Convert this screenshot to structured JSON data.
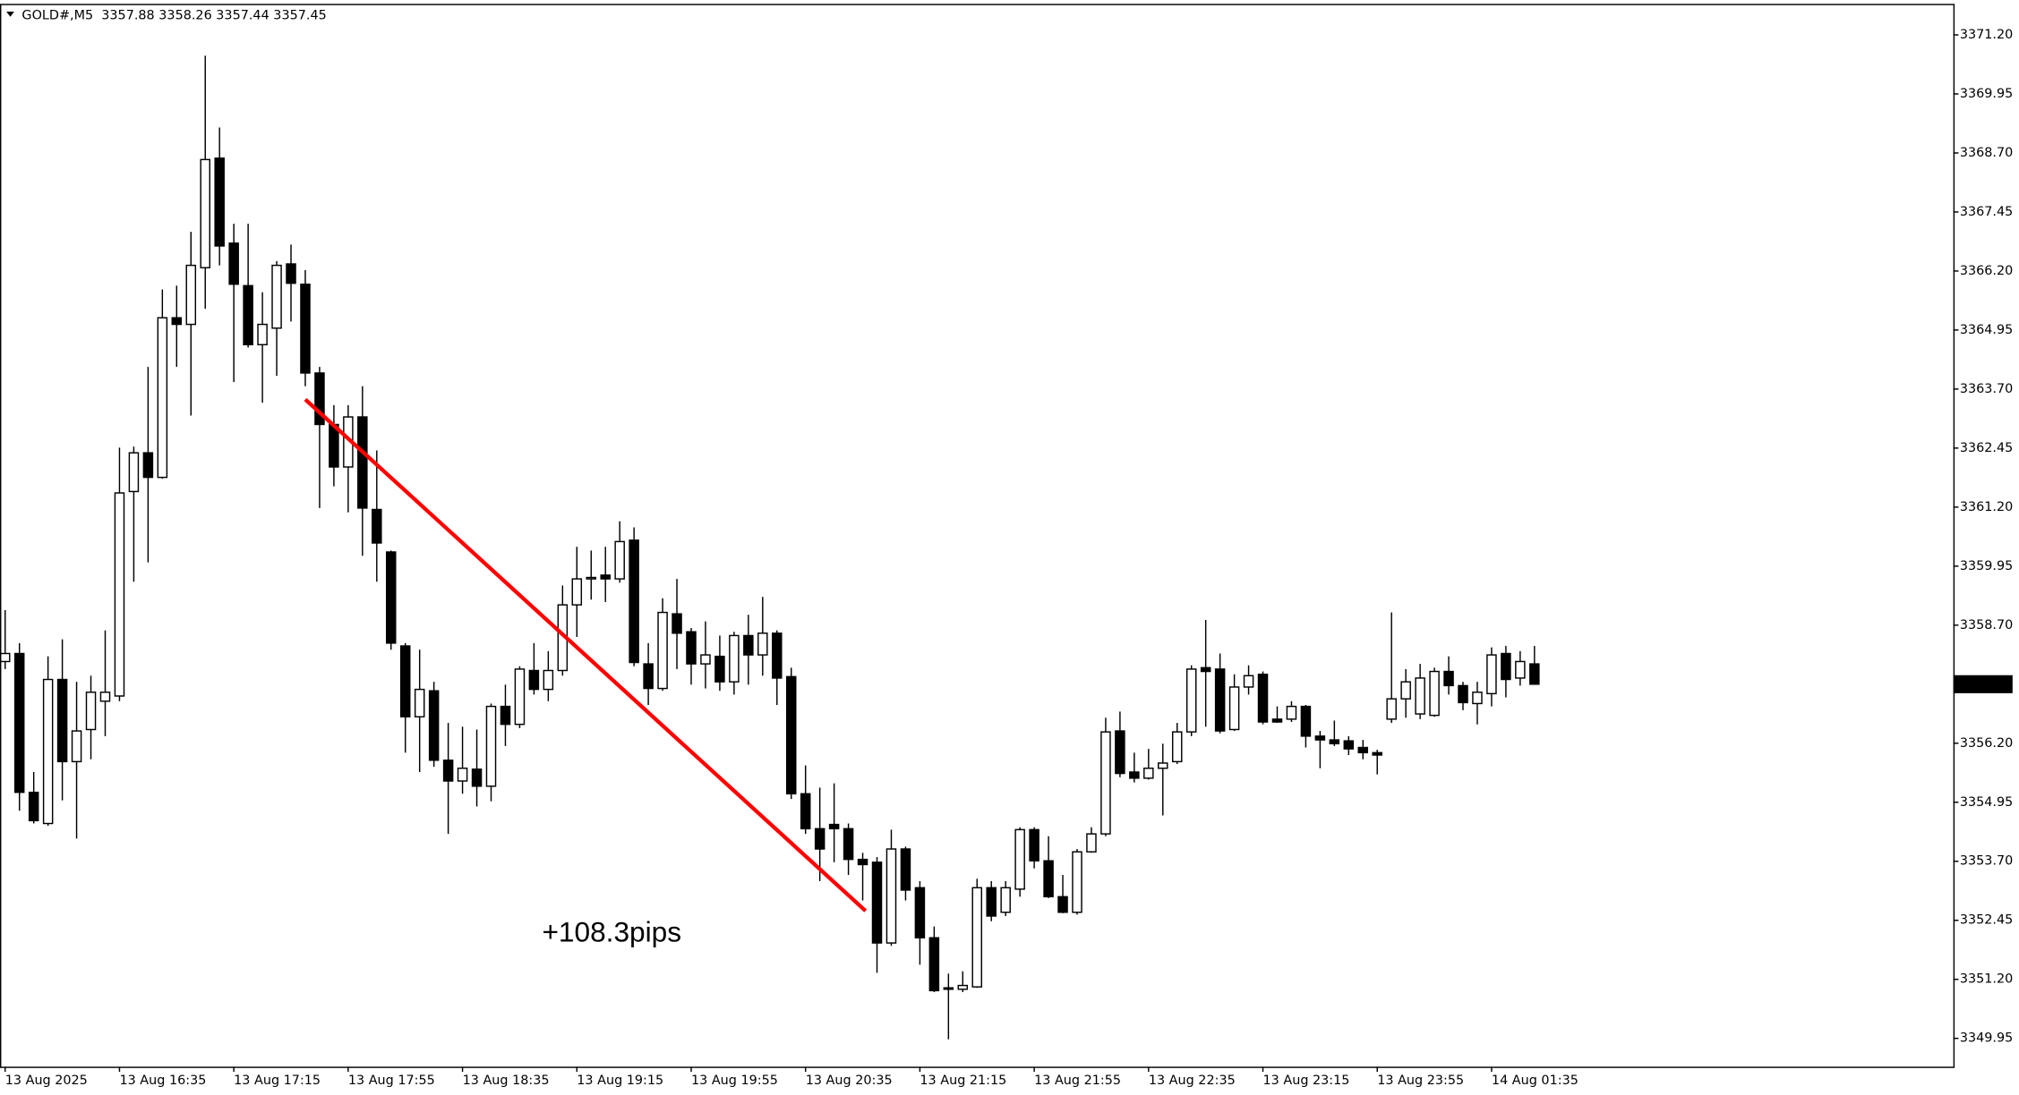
{
  "chart_data": {
    "type": "candlestick",
    "title": "GOLD#,M5  3357.88 3358.26 3357.44 3357.45",
    "categories": [
      "13 Aug 2025",
      null,
      null,
      null,
      null,
      null,
      null,
      null,
      "13 Aug 16:35",
      null,
      null,
      null,
      null,
      null,
      null,
      null,
      "13 Aug 17:15",
      null,
      null,
      null,
      null,
      null,
      null,
      null,
      "13 Aug 17:55",
      null,
      null,
      null,
      null,
      null,
      null,
      null,
      "13 Aug 18:35",
      null,
      null,
      null,
      null,
      null,
      null,
      null,
      "13 Aug 19:15",
      null,
      null,
      null,
      null,
      null,
      null,
      null,
      "13 Aug 19:55",
      null,
      null,
      null,
      null,
      null,
      null,
      null,
      "13 Aug 20:35",
      null,
      null,
      null,
      null,
      null,
      null,
      null,
      "13 Aug 21:15",
      null,
      null,
      null,
      null,
      null,
      null,
      null,
      "13 Aug 21:55",
      null,
      null,
      null,
      null,
      null,
      null,
      null,
      "13 Aug 22:35",
      null,
      null,
      null,
      null,
      null,
      null,
      null,
      "13 Aug 23:15",
      null,
      null,
      null,
      null,
      null,
      null,
      null,
      "13 Aug 23:55",
      null,
      null,
      null,
      null,
      null,
      null,
      null,
      "14 Aug 01:35",
      null,
      null,
      null
    ],
    "open": [
      3357.93,
      3358.1,
      3355.16,
      3354.5,
      3357.55,
      3355.81,
      3356.49,
      3357.09,
      3357.2,
      3361.53,
      3362.35,
      3361.83,
      3365.21,
      3365.07,
      3366.27,
      3368.59,
      3366.79,
      3365.89,
      3364.64,
      3364.99,
      3366.35,
      3365.92,
      3364.04,
      3362.95,
      3362.05,
      3363.11,
      3361.15,
      3360.25,
      3358.26,
      3356.76,
      3357.31,
      3355.84,
      3355.4,
      3355.65,
      3355.29,
      3356.98,
      3356.6,
      3357.74,
      3357.34,
      3357.74,
      3359.13,
      3359.68,
      3359.76,
      3359.68,
      3360.5,
      3357.88,
      3357.36,
      3358.94,
      3358.56,
      3357.88,
      3358.04,
      3357.5,
      3358.48,
      3358.07,
      3358.53,
      3357.61,
      3355.13,
      3354.39,
      3354.48,
      3354.39,
      3353.74,
      3353.68,
      3351.97,
      3353.96,
      3353.14,
      3352.08,
      3351.02,
      3350.99,
      3351.04,
      3353.14,
      3352.62,
      3353.11,
      3354.37,
      3353.71,
      3352.95,
      3352.62,
      3353.9,
      3354.28,
      3356.46,
      3355.59,
      3355.46,
      3355.67,
      3355.81,
      3356.44,
      3357.8,
      3357.77,
      3356.49,
      3357.39,
      3357.66,
      3356.71,
      3356.71,
      3356.98,
      3356.35,
      3356.27,
      3356.25,
      3356.11,
      3356.0,
      3356.71,
      3357.14,
      3356.82,
      3356.79,
      3357.72,
      3357.42,
      3357.04,
      3357.25,
      3358.1,
      3357.58,
      3357.88
    ],
    "high": [
      3359.02,
      3358.32,
      3355.59,
      3358.04,
      3358.4,
      3357.5,
      3357.63,
      3358.59,
      3362.46,
      3362.48,
      3364.17,
      3365.81,
      3365.89,
      3367.03,
      3370.76,
      3369.24,
      3367.2,
      3367.2,
      3365.75,
      3366.41,
      3366.76,
      3366.22,
      3364.17,
      3363.36,
      3363.36,
      3363.76,
      3362.4,
      3360.28,
      3358.32,
      3358.18,
      3357.5,
      3356.63,
      3356.55,
      3356.49,
      3357.04,
      3357.44,
      3357.83,
      3358.32,
      3358.15,
      3359.54,
      3360.36,
      3360.28,
      3360.36,
      3360.9,
      3360.77,
      3358.32,
      3359.27,
      3359.68,
      3358.64,
      3358.78,
      3358.48,
      3358.56,
      3358.92,
      3359.3,
      3358.59,
      3357.8,
      3355.73,
      3355.26,
      3355.35,
      3354.5,
      3353.88,
      3353.79,
      3354.37,
      3354.01,
      3353.28,
      3352.32,
      3351.32,
      3351.37,
      3353.33,
      3353.28,
      3353.28,
      3354.42,
      3354.42,
      3354.23,
      3353.41,
      3353.96,
      3354.42,
      3356.74,
      3356.87,
      3356.0,
      3356.08,
      3356.19,
      3356.63,
      3357.85,
      3358.81,
      3358.1,
      3357.66,
      3357.85,
      3357.72,
      3356.98,
      3357.09,
      3357.01,
      3356.46,
      3356.68,
      3356.35,
      3356.27,
      3356.06,
      3358.97,
      3357.77,
      3357.88,
      3357.8,
      3358.04,
      3357.5,
      3357.5,
      3358.23,
      3358.26,
      3358.15,
      3358.26
    ],
    "low": [
      3357.77,
      3354.77,
      3354.5,
      3354.45,
      3354.99,
      3354.18,
      3355.86,
      3356.35,
      3357.09,
      3359.62,
      3360.03,
      3361.8,
      3364.17,
      3363.14,
      3365.4,
      3366.32,
      3363.85,
      3364.58,
      3363.41,
      3363.98,
      3365.13,
      3363.76,
      3361.18,
      3361.64,
      3361.09,
      3360.17,
      3359.62,
      3358.18,
      3356.0,
      3355.59,
      3355.7,
      3354.28,
      3355.13,
      3354.86,
      3354.97,
      3356.14,
      3356.52,
      3357.23,
      3357.09,
      3357.63,
      3358.45,
      3359.24,
      3359.19,
      3359.6,
      3357.83,
      3357.01,
      3357.31,
      3357.77,
      3357.44,
      3357.36,
      3357.31,
      3357.23,
      3357.44,
      3357.63,
      3357.01,
      3355.02,
      3354.28,
      3353.28,
      3353.68,
      3353.41,
      3352.87,
      3351.34,
      3351.91,
      3352.87,
      3351.51,
      3350.93,
      3349.93,
      3350.93,
      3351.02,
      3352.43,
      3352.54,
      3352.95,
      3353.55,
      3352.92,
      3352.6,
      3352.57,
      3353.88,
      3354.23,
      3355.48,
      3355.37,
      3355.43,
      3354.67,
      3355.76,
      3356.35,
      3356.55,
      3356.41,
      3356.46,
      3357.23,
      3356.6,
      3356.63,
      3356.65,
      3356.11,
      3355.67,
      3356.14,
      3355.95,
      3355.86,
      3355.54,
      3356.63,
      3356.74,
      3356.71,
      3356.76,
      3357.23,
      3356.9,
      3356.6,
      3356.98,
      3357.17,
      3357.42,
      3357.44
    ],
    "close": [
      3358.1,
      3355.16,
      3354.56,
      3357.55,
      3355.81,
      3356.46,
      3357.28,
      3357.28,
      3361.5,
      3362.35,
      3361.83,
      3365.21,
      3365.07,
      3366.32,
      3368.56,
      3366.73,
      3365.92,
      3364.64,
      3365.07,
      3366.32,
      3365.94,
      3364.04,
      3362.95,
      3362.05,
      3363.11,
      3361.18,
      3360.44,
      3358.32,
      3356.76,
      3357.34,
      3355.84,
      3355.4,
      3355.67,
      3355.29,
      3356.98,
      3356.6,
      3357.77,
      3357.34,
      3357.74,
      3359.13,
      3359.68,
      3359.71,
      3359.68,
      3360.47,
      3357.91,
      3357.36,
      3358.97,
      3358.53,
      3357.88,
      3358.07,
      3357.5,
      3358.48,
      3358.07,
      3358.53,
      3357.58,
      3355.13,
      3354.39,
      3353.96,
      3354.39,
      3353.74,
      3353.63,
      3351.97,
      3353.96,
      3353.09,
      3352.08,
      3350.96,
      3350.99,
      3351.07,
      3353.14,
      3352.54,
      3353.14,
      3354.37,
      3353.71,
      3352.95,
      3352.62,
      3353.9,
      3354.28,
      3356.44,
      3355.56,
      3355.46,
      3355.67,
      3355.78,
      3356.44,
      3357.77,
      3357.72,
      3356.46,
      3357.39,
      3357.63,
      3356.65,
      3356.65,
      3356.98,
      3356.35,
      3356.27,
      3356.19,
      3356.08,
      3356.0,
      3355.95,
      3357.14,
      3357.5,
      3357.58,
      3357.72,
      3357.42,
      3357.06,
      3357.28,
      3358.07,
      3357.55,
      3357.93,
      3357.45
    ],
    "bull_color": "#ffffff",
    "bear_color": "#000000",
    "ylim": [
      3349.35,
      3371.83
    ],
    "yticks": [
      {
        "value": 3371.2,
        "label": "3371.20"
      },
      3369.95,
      {
        "value": 3368.7,
        "label": "3368.70"
      },
      3367.45,
      {
        "value": 3366.2,
        "label": "3366.20"
      },
      3364.95,
      {
        "value": 3363.7,
        "label": "3363.70"
      },
      3362.45,
      {
        "value": 3361.2,
        "label": "3361.20"
      },
      3359.95,
      {
        "value": 3358.7,
        "label": "3358.70"
      },
      {
        "value": 3356.2,
        "label": "3356.20"
      },
      3354.95,
      {
        "value": 3353.7,
        "label": "3353.70"
      },
      3352.45,
      {
        "value": 3351.2,
        "label": "3351.20"
      },
      3349.95
    ],
    "current_price": 3357.45,
    "grid": false,
    "trendline": {
      "color": "#ff0000",
      "x": [
        21,
        60.2
      ],
      "y": [
        3363.48,
        3352.65
      ]
    },
    "annotation": {
      "text": "+108.3pips",
      "color": "#ff0000"
    }
  }
}
